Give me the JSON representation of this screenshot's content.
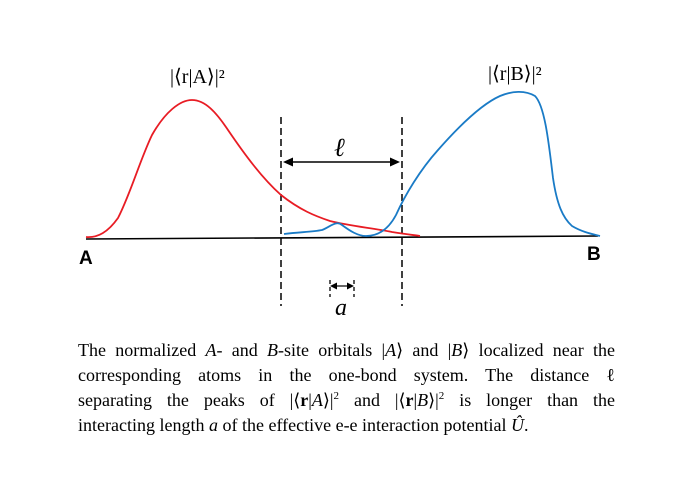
{
  "labels": {
    "orbital_a": "|⟨r|A⟩|²",
    "orbital_b": "|⟨r|B⟩|²",
    "site_a": "A",
    "site_b": "B",
    "distance_symbol": "ℓ",
    "interaction_length_symbol": "a"
  },
  "colors": {
    "orbital_a_curve": "#e81c24",
    "orbital_b_curve": "#1a7bc6",
    "axis_line": "#000000",
    "dashed_guides": "#000000"
  },
  "caption": {
    "line1": {
      "p1": "The normalized ",
      "a": "A",
      "p2": "- and ",
      "b": "B",
      "p3": "-site orbitals |",
      "a2": "A",
      "p4": "⟩ and |",
      "b2": "B",
      "p5": "⟩ localized near the"
    },
    "line2": "corresponding atoms in the one-bond system. The distance ℓ",
    "line3": {
      "p1": "separating the peaks of |⟨",
      "r1": "r",
      "p2": "|",
      "a": "A",
      "p3": "⟩|",
      "sup1": "2",
      "p4": " and |⟨",
      "r2": "r",
      "p5": "|",
      "b": "B",
      "p6": "⟩|",
      "sup2": "2",
      "p7": " is longer than the"
    },
    "line4": {
      "p1": "interacting length ",
      "a": "a",
      "p2": " of the effective e-e interaction potential  ",
      "u": "Û",
      "p3": "."
    }
  }
}
